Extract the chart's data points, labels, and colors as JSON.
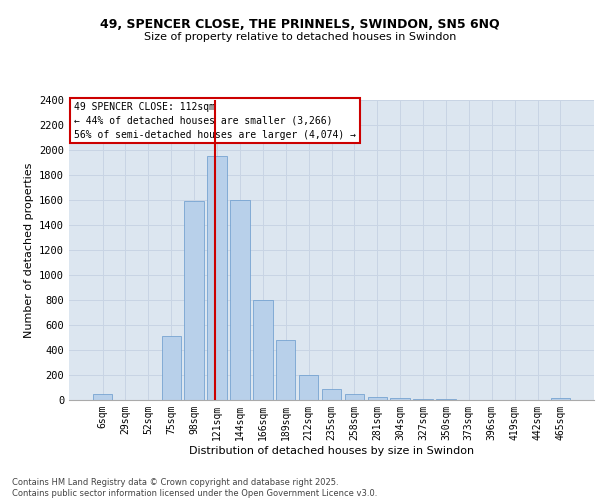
{
  "title1": "49, SPENCER CLOSE, THE PRINNELS, SWINDON, SN5 6NQ",
  "title2": "Size of property relative to detached houses in Swindon",
  "xlabel": "Distribution of detached houses by size in Swindon",
  "ylabel": "Number of detached properties",
  "categories": [
    "6sqm",
    "29sqm",
    "52sqm",
    "75sqm",
    "98sqm",
    "121sqm",
    "144sqm",
    "166sqm",
    "189sqm",
    "212sqm",
    "235sqm",
    "258sqm",
    "281sqm",
    "304sqm",
    "327sqm",
    "350sqm",
    "373sqm",
    "396sqm",
    "419sqm",
    "442sqm",
    "465sqm"
  ],
  "values": [
    52,
    2,
    2,
    510,
    1590,
    1950,
    1600,
    800,
    480,
    200,
    85,
    45,
    28,
    18,
    12,
    7,
    4,
    2,
    1,
    1,
    15
  ],
  "bar_color": "#b8d0ea",
  "bar_edge_color": "#6699cc",
  "vline_x": 4.93,
  "vline_color": "#cc0000",
  "annotation_title": "49 SPENCER CLOSE: 112sqm",
  "annotation_line1": "← 44% of detached houses are smaller (3,266)",
  "annotation_line2": "56% of semi-detached houses are larger (4,074) →",
  "annotation_box_edgecolor": "#cc0000",
  "ylim_max": 2400,
  "ytick_step": 200,
  "grid_color": "#c8d4e4",
  "bg_color": "#dce6f0",
  "footer1": "Contains HM Land Registry data © Crown copyright and database right 2025.",
  "footer2": "Contains public sector information licensed under the Open Government Licence v3.0."
}
